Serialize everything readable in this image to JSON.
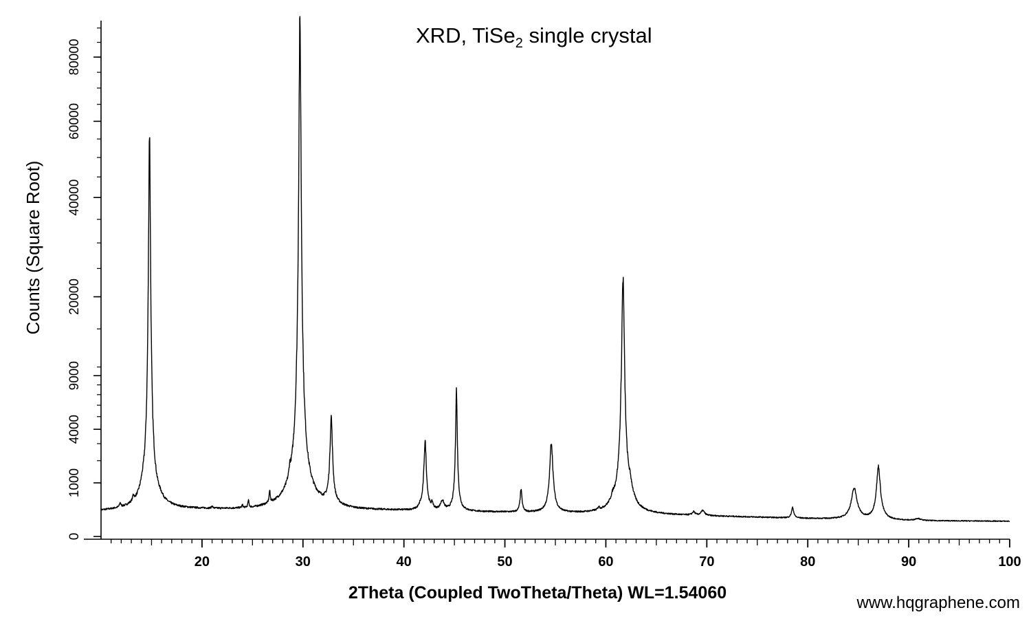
{
  "chart_data": {
    "type": "line",
    "title_main": "XRD, TiSe",
    "title_subscript": "2",
    "title_rest": " single crystal",
    "xlabel": "2Theta (Coupled TwoTheta/Theta) WL=1.54060",
    "ylabel": "Counts (Square Root)",
    "y_scale": "sqrt",
    "xlim": [
      10,
      100
    ],
    "ylim": [
      0,
      90000
    ],
    "x_ticks": [
      20,
      30,
      40,
      50,
      60,
      70,
      80,
      90,
      100
    ],
    "x_tick_labels": [
      "20",
      "30",
      "40",
      "50",
      "60",
      "70",
      "80",
      "90",
      "100"
    ],
    "y_ticks": [
      0,
      1000,
      4000,
      9000,
      20000,
      40000,
      60000,
      80000
    ],
    "y_tick_labels": [
      "0",
      "1000",
      "4000",
      "9000",
      "20000",
      "40000",
      "60000",
      "80000"
    ],
    "grid": false,
    "line_color": "#000000",
    "baseline": [
      [
        10,
        220
      ],
      [
        15,
        260
      ],
      [
        25,
        240
      ],
      [
        30,
        300
      ],
      [
        35,
        240
      ],
      [
        50,
        200
      ],
      [
        65,
        160
      ],
      [
        80,
        110
      ],
      [
        90,
        85
      ],
      [
        100,
        80
      ]
    ],
    "peaks": [
      {
        "x": 11.9,
        "height": 90,
        "width": 0.08
      },
      {
        "x": 13.2,
        "height": 150,
        "width": 0.08
      },
      {
        "x": 14.1,
        "height": 150,
        "width": 0.25
      },
      {
        "x": 14.8,
        "height": 57000,
        "width": 0.1
      },
      {
        "x": 15.9,
        "height": 50,
        "width": 0.3
      },
      {
        "x": 21.0,
        "height": 50,
        "width": 0.06
      },
      {
        "x": 24.0,
        "height": 60,
        "width": 0.06
      },
      {
        "x": 24.6,
        "height": 160,
        "width": 0.06
      },
      {
        "x": 26.7,
        "height": 330,
        "width": 0.06
      },
      {
        "x": 28.7,
        "height": 400,
        "width": 0.08
      },
      {
        "x": 29.7,
        "height": 92000,
        "width": 0.12
      },
      {
        "x": 32.8,
        "height": 4600,
        "width": 0.12
      },
      {
        "x": 41.6,
        "height": 50,
        "width": 0.1
      },
      {
        "x": 42.1,
        "height": 2900,
        "width": 0.12
      },
      {
        "x": 42.8,
        "height": 120,
        "width": 0.1
      },
      {
        "x": 43.8,
        "height": 200,
        "width": 0.2
      },
      {
        "x": 45.2,
        "height": 7300,
        "width": 0.08
      },
      {
        "x": 51.6,
        "height": 550,
        "width": 0.1
      },
      {
        "x": 54.6,
        "height": 2900,
        "width": 0.15
      },
      {
        "x": 59.3,
        "height": 60,
        "width": 0.08
      },
      {
        "x": 60.7,
        "height": 150,
        "width": 0.2
      },
      {
        "x": 61.7,
        "height": 23000,
        "width": 0.14
      },
      {
        "x": 62.4,
        "height": 400,
        "width": 0.25
      },
      {
        "x": 68.7,
        "height": 55,
        "width": 0.15
      },
      {
        "x": 69.6,
        "height": 80,
        "width": 0.2
      },
      {
        "x": 78.5,
        "height": 170,
        "width": 0.12
      },
      {
        "x": 84.6,
        "height": 700,
        "width": 0.28
      },
      {
        "x": 87.0,
        "height": 1600,
        "width": 0.18
      },
      {
        "x": 90.9,
        "height": 25,
        "width": 0.3
      }
    ]
  },
  "credit": "www.hqgraphene.com"
}
